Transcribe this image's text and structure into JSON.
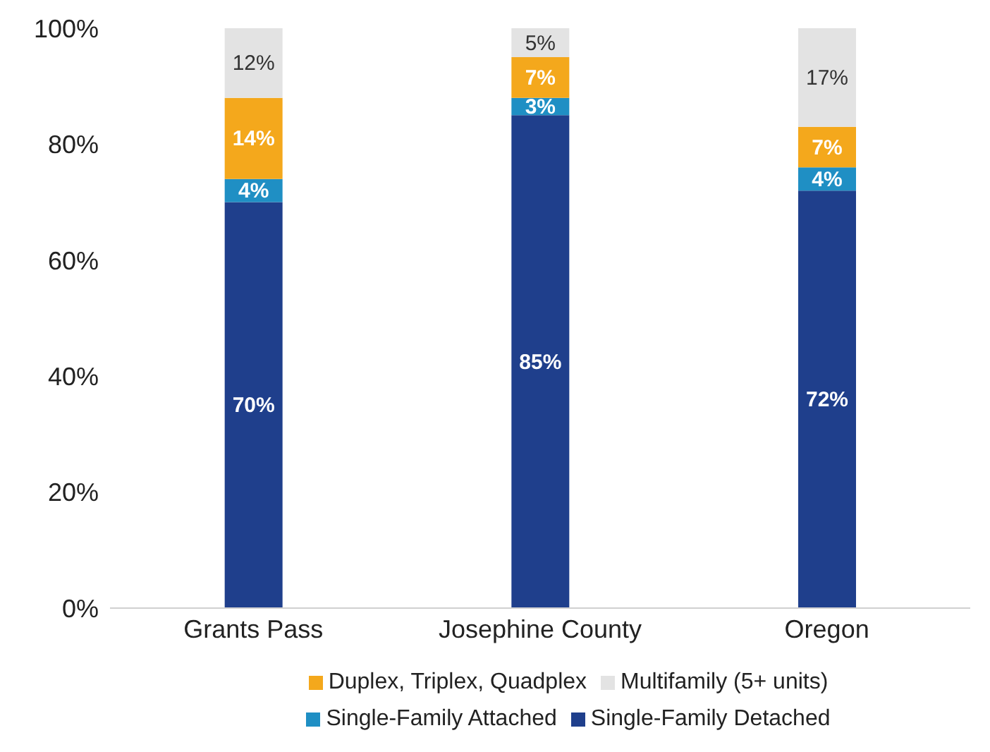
{
  "chart_data": {
    "type": "bar",
    "stacked": true,
    "categories": [
      "Grants Pass",
      "Josephine County",
      "Oregon"
    ],
    "series": [
      {
        "name": "Single-Family Detached",
        "color": "#1f3f8c",
        "values": [
          70,
          85,
          72
        ],
        "value_labels": [
          "70%",
          "85%",
          "72%"
        ]
      },
      {
        "name": "Single-Family Attached",
        "color": "#1f8fc4",
        "values": [
          4,
          3,
          4
        ],
        "value_labels": [
          "4%",
          "3%",
          "4%"
        ]
      },
      {
        "name": "Duplex, Triplex, Quadplex",
        "color": "#f4a81c",
        "values": [
          14,
          7,
          7
        ],
        "value_labels": [
          "14%",
          "7%",
          "7%"
        ]
      },
      {
        "name": "Multifamily (5+ units)",
        "color": "#e3e3e3",
        "values": [
          12,
          5,
          17
        ],
        "value_labels": [
          "12%",
          "5%",
          "17%"
        ]
      }
    ],
    "ylim": [
      0,
      100
    ],
    "yticks": [
      {
        "value": 0,
        "label": "0%"
      },
      {
        "value": 20,
        "label": "20%"
      },
      {
        "value": 40,
        "label": "40%"
      },
      {
        "value": 60,
        "label": "60%"
      },
      {
        "value": 80,
        "label": "80%"
      },
      {
        "value": 100,
        "label": "100%"
      }
    ],
    "grid": false,
    "legend": "bottom"
  }
}
